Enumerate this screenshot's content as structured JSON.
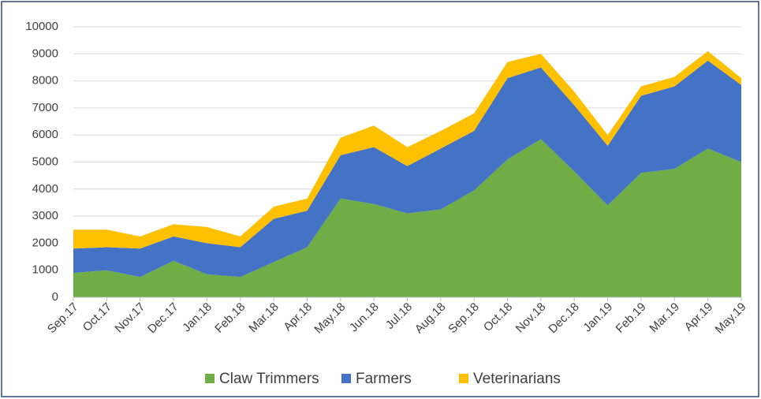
{
  "chart_data": {
    "type": "stacked_area",
    "categories": [
      "Sep.17",
      "Oct.17",
      "Nov.17",
      "Dec.17",
      "Jan.18",
      "Feb.18",
      "Mar.18",
      "Apr.18",
      "May.18",
      "Jun.18",
      "Jul.18",
      "Aug.18",
      "Sep.18",
      "Oct.18",
      "Nov.18",
      "Dec.18",
      "Jan.19",
      "Feb.19",
      "Mar.19",
      "Apr.19",
      "May.19"
    ],
    "series": [
      {
        "name": "Claw Trimmers",
        "color": "#70ad47",
        "values": [
          900,
          1000,
          750,
          1350,
          850,
          750,
          1300,
          1850,
          3650,
          3450,
          3100,
          3250,
          3950,
          5100,
          5850,
          4650,
          3400,
          4600,
          4750,
          5500,
          5000
        ]
      },
      {
        "name": "Farmers",
        "color": "#4472c4",
        "values": [
          900,
          850,
          1050,
          900,
          1150,
          1100,
          1600,
          1350,
          1600,
          2100,
          1750,
          2250,
          2200,
          3000,
          2650,
          2450,
          2200,
          2850,
          3050,
          3250,
          2850
        ]
      },
      {
        "name": "Veterinarians",
        "color": "#ffc000",
        "values": [
          700,
          650,
          450,
          450,
          600,
          400,
          450,
          450,
          650,
          800,
          700,
          650,
          650,
          600,
          500,
          500,
          400,
          350,
          350,
          350,
          250
        ]
      }
    ],
    "ylim": [
      0,
      10000
    ],
    "yticks": [
      0,
      1000,
      2000,
      3000,
      4000,
      5000,
      6000,
      7000,
      8000,
      9000,
      10000
    ],
    "grid": true,
    "legend": "bottom"
  }
}
